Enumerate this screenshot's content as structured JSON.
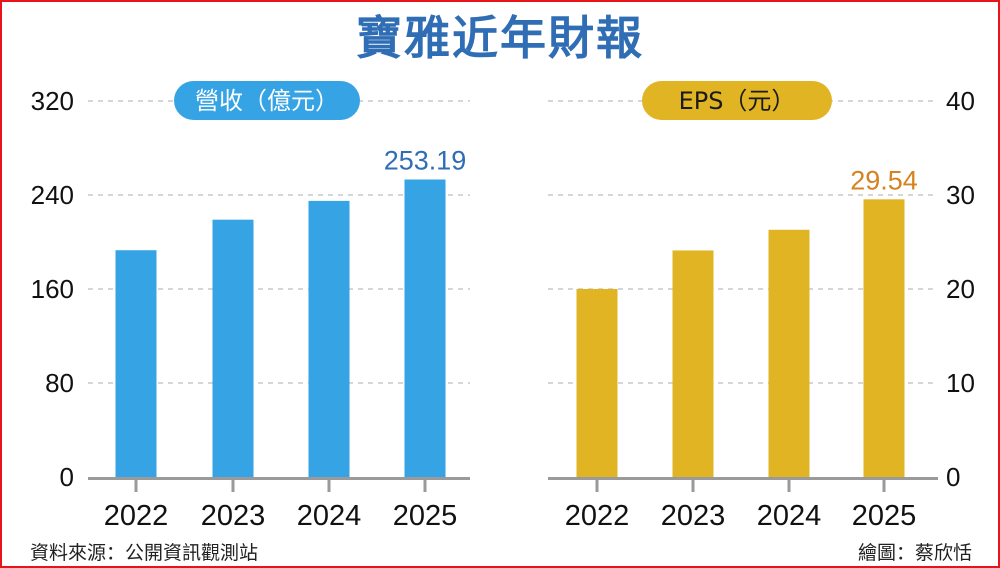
{
  "title": "寶雅近年財報",
  "colors": {
    "border": "#e8141b",
    "title": "#2f6db5",
    "revenue_bar": "#36a3e5",
    "revenue_label": "#2f6db5",
    "eps_bar": "#e0b423",
    "eps_label": "#d6831f",
    "grid": "#bdbdbd",
    "axis": "#9a9a9a"
  },
  "footer": {
    "source": "資料來源：公開資訊觀測站",
    "credit": "繪圖：蔡欣恬"
  },
  "chart_data": [
    {
      "type": "bar",
      "title": "營收（億元）",
      "categories": [
        "2022",
        "2023",
        "2024",
        "2025"
      ],
      "values": [
        193,
        219,
        235,
        253.19
      ],
      "data_labels": [
        "",
        "",
        "",
        "253.19"
      ],
      "ylim": [
        0,
        320
      ],
      "yticks": [
        0,
        80,
        160,
        240,
        320
      ],
      "ytick_labels": [
        "0",
        "80",
        "160",
        "240",
        "320"
      ],
      "yaxis_side": "left",
      "grid": true,
      "xlabel": "",
      "ylabel": ""
    },
    {
      "type": "bar",
      "title": "EPS（元）",
      "categories": [
        "2022",
        "2023",
        "2024",
        "2025"
      ],
      "values": [
        20.0,
        24.1,
        26.3,
        29.54
      ],
      "data_labels": [
        "",
        "",
        "",
        "29.54"
      ],
      "ylim": [
        0,
        40
      ],
      "yticks": [
        0,
        10,
        20,
        30,
        40
      ],
      "ytick_labels": [
        "0",
        "10",
        "20",
        "30",
        "40"
      ],
      "yaxis_side": "right",
      "grid": true,
      "xlabel": "",
      "ylabel": ""
    }
  ]
}
